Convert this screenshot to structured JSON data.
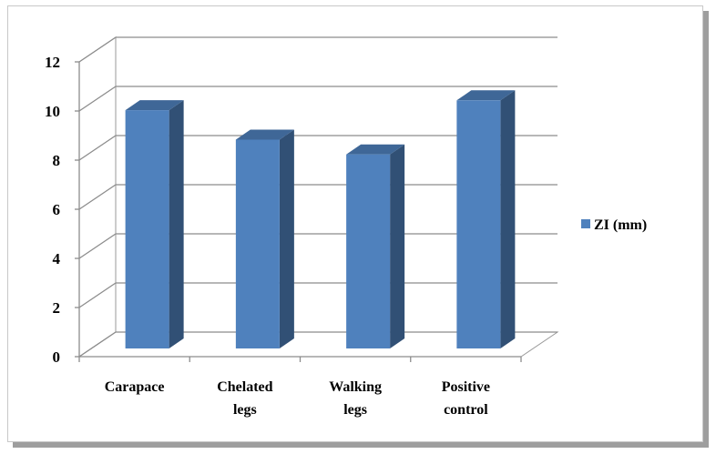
{
  "chart_data": {
    "type": "bar",
    "categories": [
      [
        "Carapace"
      ],
      [
        "Chelated",
        "legs"
      ],
      [
        "Walking",
        "legs"
      ],
      [
        "Positive",
        "control"
      ]
    ],
    "series": [
      {
        "name": "ZI (mm)",
        "values": [
          9.7,
          8.5,
          7.9,
          10.1
        ],
        "color": "#4F81BD"
      }
    ],
    "ylim": [
      0,
      12
    ],
    "yticks": [
      0,
      2,
      4,
      6,
      8,
      10,
      12
    ],
    "grid": true,
    "legend": "right",
    "style": "3d-column"
  }
}
